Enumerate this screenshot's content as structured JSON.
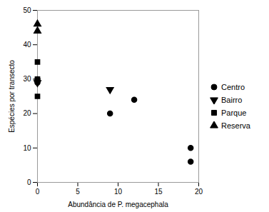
{
  "chart_data": {
    "type": "scatter",
    "xlabel": "Abundância de P. megacephala",
    "ylabel": "Espécies por transecto",
    "series": [
      {
        "name": "Centro",
        "color": "#000000",
        "marker": "circle",
        "x": [
          0,
          0,
          9,
          12,
          19,
          19
        ],
        "values": [
          29,
          30,
          20,
          24,
          10,
          6
        ]
      },
      {
        "name": "Bairro",
        "color": "#000000",
        "marker": "triangle-down",
        "x": [
          0,
          9
        ],
        "values": [
          29,
          27
        ]
      },
      {
        "name": "Parque",
        "color": "#000000",
        "marker": "square",
        "x": [
          0,
          0,
          0
        ],
        "values": [
          35,
          25,
          30
        ]
      },
      {
        "name": "Reserva",
        "color": "#000000",
        "marker": "triangle-up",
        "x": [
          0,
          0
        ],
        "values": [
          46,
          44
        ]
      }
    ],
    "xlim": [
      0,
      20
    ],
    "ylim": [
      0,
      50
    ],
    "xticks": [
      0,
      5,
      10,
      15,
      20
    ],
    "yticks": [
      0,
      10,
      20,
      30,
      40,
      50
    ],
    "legend": "right"
  }
}
